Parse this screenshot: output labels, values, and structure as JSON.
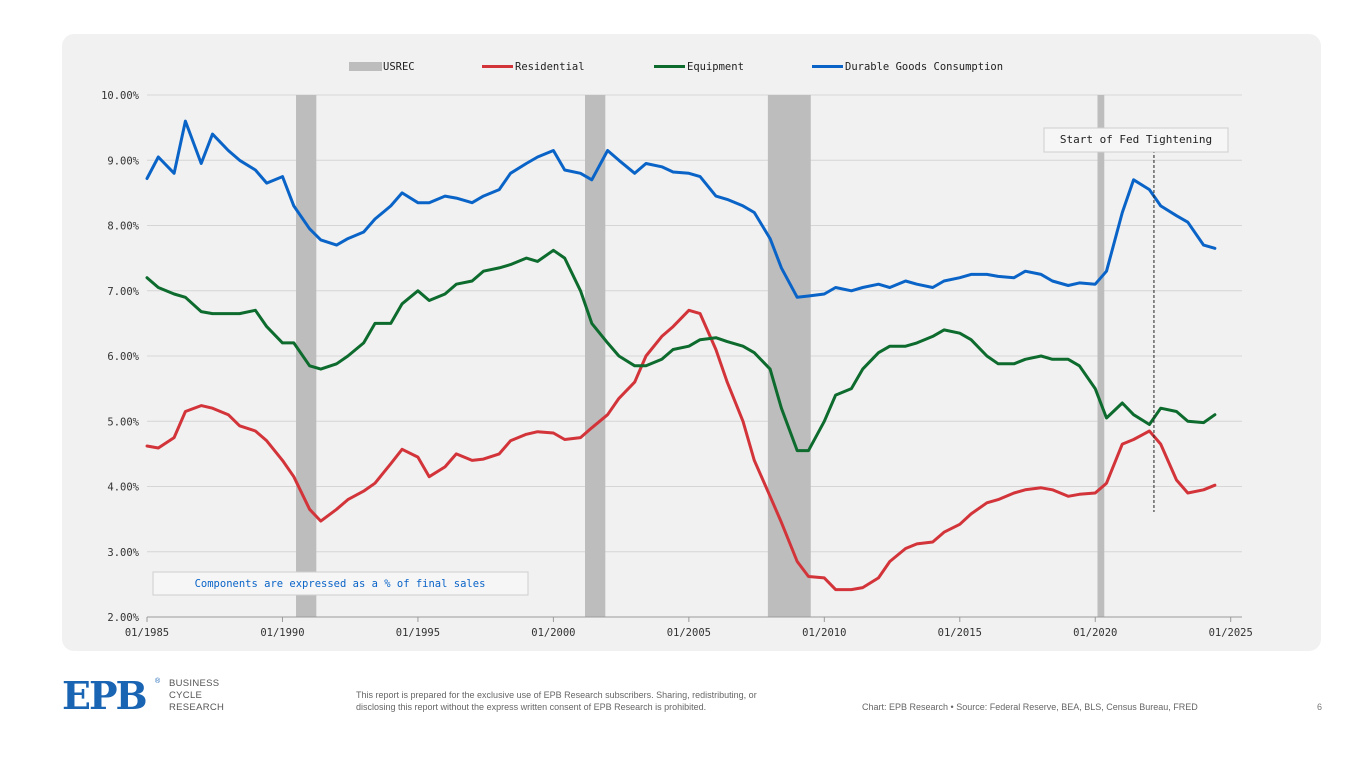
{
  "footer": {
    "logo_text": "EPB",
    "logo_tagline": [
      "BUSINESS",
      "CYCLE",
      "RESEARCH"
    ],
    "disclaimer_line1": "This report is prepared for the exclusive use of EPB Research subscribers. Sharing, redistributing, or",
    "disclaimer_line2": "disclosing this report without the express written consent of EPB Research is prohibited.",
    "source": "Chart: EPB Research  •  Source: Federal Reserve, BEA, BLS, Census Bureau, FRED",
    "page_number": "6"
  },
  "colors": {
    "panel_bg": "#f1f1f1",
    "recession": "#bdbdbd",
    "residential": "#d2343a",
    "equipment": "#0d6b2e",
    "durable": "#0a64c8",
    "annotation_text": "#0a64c8",
    "brand": "#1a64b4"
  },
  "chart_data": {
    "type": "line",
    "title": "",
    "xlabel": "",
    "ylabel": "",
    "x_axis": {
      "type": "date",
      "range": [
        "1985-01",
        "2025-06"
      ],
      "ticks": [
        "01/1985",
        "01/1990",
        "01/1995",
        "01/2000",
        "01/2005",
        "01/2010",
        "01/2015",
        "01/2020",
        "01/2025"
      ],
      "tick_years": [
        1985,
        1990,
        1995,
        2000,
        2005,
        2010,
        2015,
        2020,
        2025
      ]
    },
    "y_axis": {
      "range": [
        2.0,
        10.0
      ],
      "ticks": [
        2,
        3,
        4,
        5,
        6,
        7,
        8,
        9,
        10
      ],
      "tick_labels": [
        "2.00%",
        "3.00%",
        "4.00%",
        "5.00%",
        "6.00%",
        "7.00%",
        "8.00%",
        "9.00%",
        "10.00%"
      ]
    },
    "grid": "horizontal",
    "legend_position": "top",
    "legend": [
      {
        "name": "USREC",
        "kind": "band",
        "color": "#bdbdbd"
      },
      {
        "name": "Residential",
        "kind": "line",
        "color": "#d2343a"
      },
      {
        "name": "Equipment",
        "kind": "line",
        "color": "#0d6b2e"
      },
      {
        "name": "Durable Goods Consumption",
        "kind": "line",
        "color": "#0a64c8"
      }
    ],
    "recessions": [
      {
        "start": "1990-07",
        "end": "1991-03"
      },
      {
        "start": "2001-03",
        "end": "2001-11"
      },
      {
        "start": "2007-12",
        "end": "2009-06"
      },
      {
        "start": "2020-02",
        "end": "2020-04"
      }
    ],
    "annotations": {
      "fed_tightening": {
        "label": "Start of Fed Tightening",
        "date": "2022-03"
      },
      "note": "Components are expressed as a % of final sales"
    },
    "series": [
      {
        "name": "Residential",
        "color": "#d2343a",
        "points": [
          [
            "1985-01",
            4.62
          ],
          [
            "1985-06",
            4.59
          ],
          [
            "1986-01",
            4.75
          ],
          [
            "1986-06",
            5.15
          ],
          [
            "1987-01",
            5.24
          ],
          [
            "1987-06",
            5.2
          ],
          [
            "1988-01",
            5.1
          ],
          [
            "1988-06",
            4.93
          ],
          [
            "1989-01",
            4.85
          ],
          [
            "1989-06",
            4.7
          ],
          [
            "1990-01",
            4.4
          ],
          [
            "1990-06",
            4.15
          ],
          [
            "1991-01",
            3.65
          ],
          [
            "1991-06",
            3.47
          ],
          [
            "1992-01",
            3.65
          ],
          [
            "1992-06",
            3.8
          ],
          [
            "1993-01",
            3.93
          ],
          [
            "1993-06",
            4.05
          ],
          [
            "1994-01",
            4.35
          ],
          [
            "1994-06",
            4.57
          ],
          [
            "1995-01",
            4.45
          ],
          [
            "1995-06",
            4.15
          ],
          [
            "1996-01",
            4.3
          ],
          [
            "1996-06",
            4.5
          ],
          [
            "1997-01",
            4.4
          ],
          [
            "1997-06",
            4.42
          ],
          [
            "1998-01",
            4.5
          ],
          [
            "1998-06",
            4.7
          ],
          [
            "1999-01",
            4.8
          ],
          [
            "1999-06",
            4.84
          ],
          [
            "2000-01",
            4.82
          ],
          [
            "2000-06",
            4.72
          ],
          [
            "2001-01",
            4.75
          ],
          [
            "2001-06",
            4.9
          ],
          [
            "2002-01",
            5.1
          ],
          [
            "2002-06",
            5.35
          ],
          [
            "2003-01",
            5.6
          ],
          [
            "2003-06",
            6.0
          ],
          [
            "2004-01",
            6.3
          ],
          [
            "2004-06",
            6.45
          ],
          [
            "2005-01",
            6.7
          ],
          [
            "2005-06",
            6.65
          ],
          [
            "2006-01",
            6.1
          ],
          [
            "2006-06",
            5.6
          ],
          [
            "2007-01",
            5.0
          ],
          [
            "2007-06",
            4.4
          ],
          [
            "2008-01",
            3.85
          ],
          [
            "2008-06",
            3.45
          ],
          [
            "2009-01",
            2.85
          ],
          [
            "2009-06",
            2.62
          ],
          [
            "2010-01",
            2.6
          ],
          [
            "2010-06",
            2.42
          ],
          [
            "2011-01",
            2.42
          ],
          [
            "2011-06",
            2.45
          ],
          [
            "2012-01",
            2.6
          ],
          [
            "2012-06",
            2.85
          ],
          [
            "2013-01",
            3.05
          ],
          [
            "2013-06",
            3.12
          ],
          [
            "2014-01",
            3.15
          ],
          [
            "2014-06",
            3.3
          ],
          [
            "2015-01",
            3.42
          ],
          [
            "2015-06",
            3.58
          ],
          [
            "2016-01",
            3.75
          ],
          [
            "2016-06",
            3.8
          ],
          [
            "2017-01",
            3.9
          ],
          [
            "2017-06",
            3.95
          ],
          [
            "2018-01",
            3.98
          ],
          [
            "2018-06",
            3.95
          ],
          [
            "2019-01",
            3.85
          ],
          [
            "2019-06",
            3.88
          ],
          [
            "2020-01",
            3.9
          ],
          [
            "2020-06",
            4.05
          ],
          [
            "2021-01",
            4.65
          ],
          [
            "2021-06",
            4.72
          ],
          [
            "2022-01",
            4.85
          ],
          [
            "2022-06",
            4.65
          ],
          [
            "2023-01",
            4.1
          ],
          [
            "2023-06",
            3.9
          ],
          [
            "2024-01",
            3.95
          ],
          [
            "2024-06",
            4.02
          ]
        ]
      },
      {
        "name": "Equipment",
        "color": "#0d6b2e",
        "points": [
          [
            "1985-01",
            7.2
          ],
          [
            "1985-06",
            7.05
          ],
          [
            "1986-01",
            6.95
          ],
          [
            "1986-06",
            6.9
          ],
          [
            "1987-01",
            6.68
          ],
          [
            "1987-06",
            6.65
          ],
          [
            "1988-01",
            6.65
          ],
          [
            "1988-06",
            6.65
          ],
          [
            "1989-01",
            6.7
          ],
          [
            "1989-06",
            6.45
          ],
          [
            "1990-01",
            6.2
          ],
          [
            "1990-06",
            6.2
          ],
          [
            "1991-01",
            5.85
          ],
          [
            "1991-06",
            5.8
          ],
          [
            "1992-01",
            5.88
          ],
          [
            "1992-06",
            6.0
          ],
          [
            "1993-01",
            6.2
          ],
          [
            "1993-06",
            6.5
          ],
          [
            "1994-01",
            6.5
          ],
          [
            "1994-06",
            6.8
          ],
          [
            "1995-01",
            7.0
          ],
          [
            "1995-06",
            6.85
          ],
          [
            "1996-01",
            6.95
          ],
          [
            "1996-06",
            7.1
          ],
          [
            "1997-01",
            7.15
          ],
          [
            "1997-06",
            7.3
          ],
          [
            "1998-01",
            7.35
          ],
          [
            "1998-06",
            7.4
          ],
          [
            "1999-01",
            7.5
          ],
          [
            "1999-06",
            7.45
          ],
          [
            "2000-01",
            7.62
          ],
          [
            "2000-06",
            7.5
          ],
          [
            "2001-01",
            7.0
          ],
          [
            "2001-06",
            6.5
          ],
          [
            "2002-01",
            6.2
          ],
          [
            "2002-06",
            6.0
          ],
          [
            "2003-01",
            5.85
          ],
          [
            "2003-06",
            5.85
          ],
          [
            "2004-01",
            5.95
          ],
          [
            "2004-06",
            6.1
          ],
          [
            "2005-01",
            6.15
          ],
          [
            "2005-06",
            6.25
          ],
          [
            "2006-01",
            6.28
          ],
          [
            "2006-06",
            6.22
          ],
          [
            "2007-01",
            6.15
          ],
          [
            "2007-06",
            6.05
          ],
          [
            "2008-01",
            5.8
          ],
          [
            "2008-06",
            5.2
          ],
          [
            "2009-01",
            4.55
          ],
          [
            "2009-06",
            4.55
          ],
          [
            "2010-01",
            5.0
          ],
          [
            "2010-06",
            5.4
          ],
          [
            "2011-01",
            5.5
          ],
          [
            "2011-06",
            5.8
          ],
          [
            "2012-01",
            6.05
          ],
          [
            "2012-06",
            6.15
          ],
          [
            "2013-01",
            6.15
          ],
          [
            "2013-06",
            6.2
          ],
          [
            "2014-01",
            6.3
          ],
          [
            "2014-06",
            6.4
          ],
          [
            "2015-01",
            6.35
          ],
          [
            "2015-06",
            6.25
          ],
          [
            "2016-01",
            6.0
          ],
          [
            "2016-06",
            5.88
          ],
          [
            "2017-01",
            5.88
          ],
          [
            "2017-06",
            5.95
          ],
          [
            "2018-01",
            6.0
          ],
          [
            "2018-06",
            5.95
          ],
          [
            "2019-01",
            5.95
          ],
          [
            "2019-06",
            5.85
          ],
          [
            "2020-01",
            5.5
          ],
          [
            "2020-06",
            5.05
          ],
          [
            "2021-01",
            5.28
          ],
          [
            "2021-06",
            5.1
          ],
          [
            "2022-01",
            4.95
          ],
          [
            "2022-06",
            5.2
          ],
          [
            "2023-01",
            5.15
          ],
          [
            "2023-06",
            5.0
          ],
          [
            "2024-01",
            4.98
          ],
          [
            "2024-06",
            5.1
          ]
        ]
      },
      {
        "name": "Durable Goods Consumption",
        "color": "#0a64c8",
        "points": [
          [
            "1985-01",
            8.72
          ],
          [
            "1985-06",
            9.05
          ],
          [
            "1986-01",
            8.8
          ],
          [
            "1986-06",
            9.6
          ],
          [
            "1987-01",
            8.95
          ],
          [
            "1987-06",
            9.4
          ],
          [
            "1988-01",
            9.15
          ],
          [
            "1988-06",
            9.0
          ],
          [
            "1989-01",
            8.85
          ],
          [
            "1989-06",
            8.65
          ],
          [
            "1990-01",
            8.75
          ],
          [
            "1990-06",
            8.3
          ],
          [
            "1991-01",
            7.95
          ],
          [
            "1991-06",
            7.78
          ],
          [
            "1992-01",
            7.7
          ],
          [
            "1992-06",
            7.8
          ],
          [
            "1993-01",
            7.9
          ],
          [
            "1993-06",
            8.1
          ],
          [
            "1994-01",
            8.3
          ],
          [
            "1994-06",
            8.5
          ],
          [
            "1995-01",
            8.35
          ],
          [
            "1995-06",
            8.35
          ],
          [
            "1996-01",
            8.45
          ],
          [
            "1996-06",
            8.42
          ],
          [
            "1997-01",
            8.35
          ],
          [
            "1997-06",
            8.45
          ],
          [
            "1998-01",
            8.55
          ],
          [
            "1998-06",
            8.8
          ],
          [
            "1999-01",
            8.95
          ],
          [
            "1999-06",
            9.05
          ],
          [
            "2000-01",
            9.15
          ],
          [
            "2000-06",
            8.85
          ],
          [
            "2001-01",
            8.8
          ],
          [
            "2001-06",
            8.7
          ],
          [
            "2002-01",
            9.15
          ],
          [
            "2002-06",
            9.0
          ],
          [
            "2003-01",
            8.8
          ],
          [
            "2003-06",
            8.95
          ],
          [
            "2004-01",
            8.9
          ],
          [
            "2004-06",
            8.82
          ],
          [
            "2005-01",
            8.8
          ],
          [
            "2005-06",
            8.75
          ],
          [
            "2006-01",
            8.45
          ],
          [
            "2006-06",
            8.4
          ],
          [
            "2007-01",
            8.3
          ],
          [
            "2007-06",
            8.2
          ],
          [
            "2008-01",
            7.8
          ],
          [
            "2008-06",
            7.35
          ],
          [
            "2009-01",
            6.9
          ],
          [
            "2009-06",
            6.92
          ],
          [
            "2010-01",
            6.95
          ],
          [
            "2010-06",
            7.05
          ],
          [
            "2011-01",
            7.0
          ],
          [
            "2011-06",
            7.05
          ],
          [
            "2012-01",
            7.1
          ],
          [
            "2012-06",
            7.05
          ],
          [
            "2013-01",
            7.15
          ],
          [
            "2013-06",
            7.1
          ],
          [
            "2014-01",
            7.05
          ],
          [
            "2014-06",
            7.15
          ],
          [
            "2015-01",
            7.2
          ],
          [
            "2015-06",
            7.25
          ],
          [
            "2016-01",
            7.25
          ],
          [
            "2016-06",
            7.22
          ],
          [
            "2017-01",
            7.2
          ],
          [
            "2017-06",
            7.3
          ],
          [
            "2018-01",
            7.25
          ],
          [
            "2018-06",
            7.15
          ],
          [
            "2019-01",
            7.08
          ],
          [
            "2019-06",
            7.12
          ],
          [
            "2020-01",
            7.1
          ],
          [
            "2020-06",
            7.3
          ],
          [
            "2021-01",
            8.2
          ],
          [
            "2021-06",
            8.7
          ],
          [
            "2022-01",
            8.55
          ],
          [
            "2022-06",
            8.3
          ],
          [
            "2023-01",
            8.15
          ],
          [
            "2023-06",
            8.05
          ],
          [
            "2024-01",
            7.7
          ],
          [
            "2024-06",
            7.65
          ]
        ]
      }
    ]
  }
}
